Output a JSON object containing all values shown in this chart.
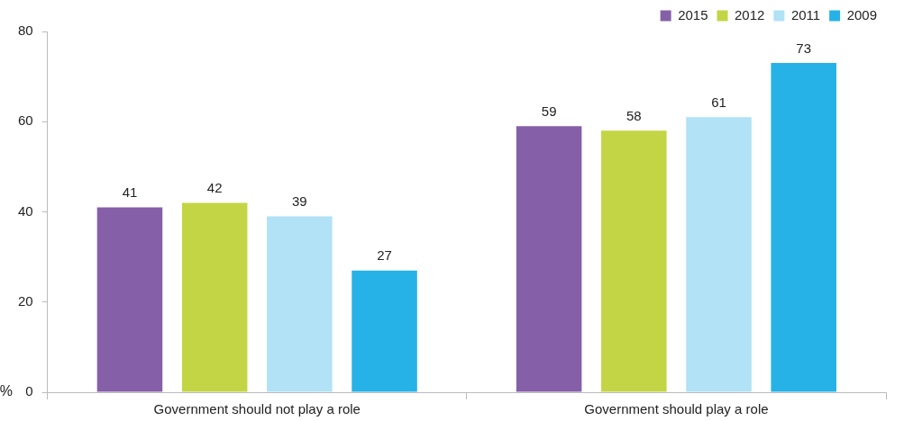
{
  "chart_data": {
    "type": "bar",
    "ylabel": "%",
    "categories": [
      "Government should not play a role",
      "Government should play a role"
    ],
    "series": [
      {
        "name": "2015",
        "color": "#8560a8",
        "values": [
          41,
          59
        ]
      },
      {
        "name": "2012",
        "color": "#c3d544",
        "values": [
          42,
          58
        ]
      },
      {
        "name": "2011",
        "color": "#b1e2f6",
        "values": [
          39,
          61
        ]
      },
      {
        "name": "2009",
        "color": "#26b2e6",
        "values": [
          27,
          73
        ]
      }
    ],
    "ylim": [
      0,
      80
    ],
    "yticks": [
      0,
      20,
      40,
      60,
      80
    ],
    "grid": false,
    "legend": "top right",
    "data_labels": true
  }
}
